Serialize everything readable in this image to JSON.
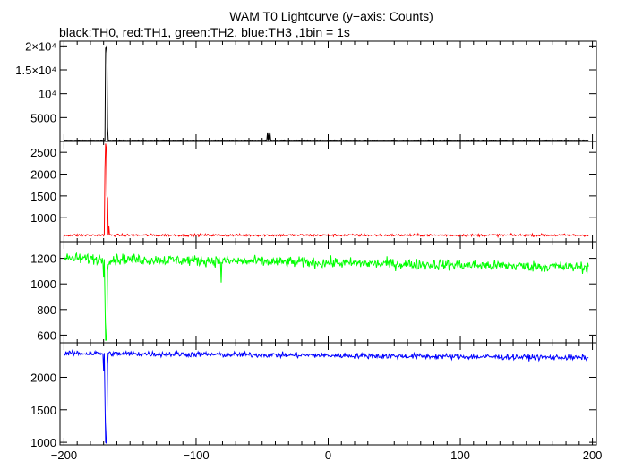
{
  "chart_data": {
    "type": "line",
    "title": "WAM T0 Lightcurve (y−axis: Counts)",
    "subtitle": "black:TH0, red:TH1, green:TH2, blue:TH3 ,1bin = 1s",
    "xlabel": "",
    "ylabel": "",
    "xlim": [
      -203,
      203
    ],
    "x_ticks": [
      -200,
      -100,
      0,
      100,
      200
    ],
    "x_tick_labels": [
      "−200",
      "−100",
      "0",
      "100",
      "200"
    ],
    "grid": false,
    "panels": [
      {
        "color": "#000000",
        "ylim": [
          0,
          21000
        ],
        "y_ticks": [
          5000,
          10000,
          15000,
          20000
        ],
        "y_tick_labels": [
          "5000",
          "10⁴",
          "1.5×10⁴",
          "2×10⁴"
        ],
        "baseline": 250,
        "noise": 40,
        "features": [
          {
            "x": -168.5,
            "value": 19500
          },
          {
            "x": -168,
            "value": 19800
          },
          {
            "x": -167.5,
            "value": 18500
          },
          {
            "x": -167,
            "value": 3000
          },
          {
            "x": -46,
            "value": 1700
          },
          {
            "x": -45,
            "value": 1700
          },
          {
            "x": -44,
            "value": 1700
          }
        ]
      },
      {
        "color": "#ff0000",
        "ylim": [
          450,
          2750
        ],
        "y_ticks": [
          1000,
          1500,
          2000,
          2500
        ],
        "y_tick_labels": [
          "1000",
          "1500",
          "2000",
          "2500"
        ],
        "baseline": 600,
        "noise": 25,
        "features": [
          {
            "x": -169,
            "value": 2100
          },
          {
            "x": -168.5,
            "value": 2700
          },
          {
            "x": -168,
            "value": 2600
          },
          {
            "x": -167.5,
            "value": 1500
          },
          {
            "x": -167,
            "value": 1450
          },
          {
            "x": -166,
            "value": 800
          }
        ]
      },
      {
        "color": "#00ff00",
        "ylim": [
          540,
          1330
        ],
        "y_ticks": [
          600,
          800,
          1000,
          1200
        ],
        "y_tick_labels": [
          "600",
          "800",
          "1000",
          "1200"
        ],
        "baseline": 1200,
        "trend": -70,
        "noise": 40,
        "features": [
          {
            "x": -170,
            "value": 1050
          },
          {
            "x": -169,
            "value": 900
          },
          {
            "x": -168.5,
            "value": 560
          },
          {
            "x": -168,
            "value": 560
          },
          {
            "x": -167.5,
            "value": 700
          },
          {
            "x": -167,
            "value": 1100
          },
          {
            "x": -81,
            "value": 1010
          }
        ]
      },
      {
        "color": "#0000ff",
        "ylim": [
          960,
          2530
        ],
        "y_ticks": [
          1000,
          1500,
          2000
        ],
        "y_tick_labels": [
          "1000",
          "1500",
          "2000"
        ],
        "baseline": 2370,
        "trend": -70,
        "noise": 40,
        "features": [
          {
            "x": -170,
            "value": 2100
          },
          {
            "x": -169,
            "value": 1700
          },
          {
            "x": -168.5,
            "value": 1000
          },
          {
            "x": -168,
            "value": 990
          },
          {
            "x": -167.5,
            "value": 1300
          },
          {
            "x": -167,
            "value": 2200
          }
        ]
      }
    ]
  }
}
